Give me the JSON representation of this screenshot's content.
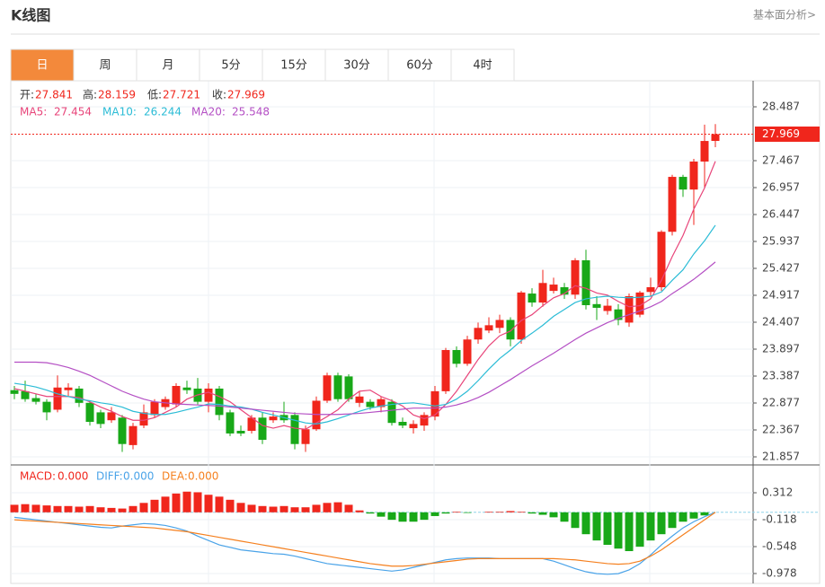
{
  "header": {
    "title": "K线图",
    "link": "基本面分析>"
  },
  "tabs": [
    "日",
    "周",
    "月",
    "5分",
    "15分",
    "30分",
    "60分",
    "4时"
  ],
  "active_tab": 0,
  "chart_data": [
    {
      "type": "candlestick",
      "ohlc_labels": [
        "开:",
        "高:",
        "低:",
        "收:"
      ],
      "open": [
        23.12,
        23.1,
        22.97,
        22.9,
        22.75,
        23.12,
        23.15,
        22.88,
        22.7,
        22.55,
        22.6,
        22.08,
        22.45,
        22.65,
        22.8,
        22.85,
        23.17,
        23.15,
        22.9,
        23.15,
        22.7,
        22.35,
        22.35,
        22.6,
        22.55,
        22.65,
        22.65,
        22.1,
        22.38,
        22.92,
        23.4,
        23.38,
        22.88,
        22.9,
        22.8,
        22.9,
        22.52,
        22.4,
        22.45,
        22.62,
        23.1,
        23.88,
        23.62,
        24.08,
        24.25,
        24.3,
        24.45,
        24.08,
        24.95,
        24.78,
        25.0,
        25.07,
        24.93,
        25.58,
        24.75,
        24.62,
        24.65,
        24.4,
        24.55,
        24.98,
        25.07,
        26.12,
        27.16,
        26.92,
        27.45,
        27.841
      ],
      "high": [
        23.2,
        23.3,
        23.05,
        22.95,
        23.4,
        23.25,
        23.2,
        22.9,
        22.75,
        22.8,
        22.65,
        22.5,
        22.85,
        22.95,
        23.0,
        23.25,
        23.3,
        23.35,
        23.25,
        23.2,
        22.75,
        22.45,
        22.65,
        22.7,
        22.7,
        22.9,
        22.7,
        22.45,
        23.0,
        23.45,
        23.45,
        23.42,
        23.1,
        22.95,
        23.0,
        22.95,
        22.6,
        22.55,
        22.7,
        23.2,
        23.92,
        23.95,
        24.15,
        24.4,
        24.5,
        24.55,
        24.5,
        25.0,
        25.05,
        25.4,
        25.25,
        25.15,
        25.62,
        25.78,
        24.9,
        24.85,
        24.75,
        24.95,
        25.0,
        25.25,
        26.15,
        27.2,
        27.2,
        27.5,
        28.15,
        28.159
      ],
      "low": [
        22.95,
        22.9,
        22.85,
        22.55,
        22.7,
        23.0,
        22.8,
        22.45,
        22.4,
        22.5,
        21.95,
        22.0,
        22.4,
        22.6,
        22.75,
        22.8,
        23.05,
        22.85,
        22.7,
        22.55,
        22.25,
        22.25,
        22.3,
        22.1,
        22.5,
        22.5,
        22.0,
        21.95,
        22.35,
        22.88,
        22.9,
        22.9,
        22.8,
        22.75,
        22.7,
        22.45,
        22.4,
        22.3,
        22.35,
        22.55,
        23.05,
        23.55,
        23.58,
        24.0,
        24.2,
        24.2,
        23.95,
        24.0,
        24.7,
        24.7,
        24.95,
        24.85,
        24.85,
        24.65,
        24.45,
        24.55,
        24.35,
        24.32,
        24.5,
        24.9,
        25.0,
        26.05,
        26.78,
        26.25,
        26.95,
        27.721
      ],
      "close": [
        23.05,
        22.95,
        22.9,
        22.7,
        23.17,
        23.17,
        22.88,
        22.52,
        22.48,
        22.7,
        22.1,
        22.44,
        22.7,
        22.9,
        22.95,
        23.2,
        23.12,
        22.9,
        23.15,
        22.65,
        22.3,
        22.3,
        22.6,
        22.18,
        22.62,
        22.55,
        22.1,
        22.38,
        22.92,
        23.4,
        22.95,
        22.95,
        23.0,
        22.8,
        22.95,
        22.5,
        22.45,
        22.48,
        22.65,
        23.1,
        23.88,
        23.62,
        24.08,
        24.3,
        24.35,
        24.45,
        24.08,
        24.97,
        24.78,
        25.15,
        25.12,
        24.93,
        25.58,
        24.73,
        24.68,
        24.72,
        24.45,
        24.9,
        24.97,
        25.07,
        26.12,
        27.16,
        26.92,
        27.45,
        27.84,
        27.969
      ],
      "up_color": "#f0261c",
      "down_color": "#18a818",
      "series": [
        {
          "name": "MA5:",
          "color": "#e8457a",
          "values": [
            23.15,
            23.1,
            23.05,
            23.0,
            23.0,
            23.0,
            22.98,
            22.9,
            22.8,
            22.72,
            22.62,
            22.55,
            22.55,
            22.6,
            22.7,
            22.8,
            22.95,
            23.03,
            23.08,
            23.0,
            22.9,
            22.75,
            22.6,
            22.45,
            22.4,
            22.45,
            22.4,
            22.38,
            22.5,
            22.62,
            22.75,
            22.95,
            23.1,
            23.12,
            23.0,
            22.92,
            22.82,
            22.65,
            22.58,
            22.65,
            22.85,
            23.1,
            23.4,
            23.7,
            23.96,
            24.15,
            24.24,
            24.44,
            24.55,
            24.72,
            24.87,
            24.95,
            25.1,
            25.05,
            24.96,
            24.92,
            24.8,
            24.7,
            24.72,
            24.85,
            25.2,
            25.65,
            26.05,
            26.55,
            26.95,
            27.454
          ]
        },
        {
          "name": "MA10:",
          "color": "#2bbcd6",
          "values": [
            23.25,
            23.22,
            23.18,
            23.12,
            23.05,
            23.0,
            22.95,
            22.92,
            22.88,
            22.85,
            22.8,
            22.72,
            22.68,
            22.66,
            22.66,
            22.7,
            22.75,
            22.8,
            22.86,
            22.85,
            22.82,
            22.8,
            22.76,
            22.7,
            22.65,
            22.6,
            22.55,
            22.5,
            22.48,
            22.52,
            22.58,
            22.65,
            22.72,
            22.78,
            22.82,
            22.85,
            22.87,
            22.88,
            22.85,
            22.82,
            22.85,
            22.95,
            23.1,
            23.3,
            23.52,
            23.72,
            23.88,
            24.06,
            24.2,
            24.35,
            24.52,
            24.65,
            24.78,
            24.85,
            24.88,
            24.9,
            24.88,
            24.87,
            24.88,
            24.9,
            24.98,
            25.2,
            25.4,
            25.7,
            25.95,
            26.244
          ]
        },
        {
          "name": "MA20:",
          "color": "#b44fc4",
          "values": [
            23.65,
            23.65,
            23.65,
            23.64,
            23.6,
            23.55,
            23.48,
            23.4,
            23.3,
            23.2,
            23.1,
            23.02,
            22.95,
            22.9,
            22.88,
            22.86,
            22.85,
            22.84,
            22.83,
            22.82,
            22.8,
            22.78,
            22.76,
            22.74,
            22.72,
            22.7,
            22.68,
            22.67,
            22.66,
            22.66,
            22.66,
            22.67,
            22.68,
            22.7,
            22.72,
            22.74,
            22.76,
            22.78,
            22.78,
            22.78,
            22.8,
            22.84,
            22.9,
            22.98,
            23.08,
            23.2,
            23.32,
            23.45,
            23.58,
            23.7,
            23.82,
            23.95,
            24.08,
            24.2,
            24.3,
            24.4,
            24.48,
            24.55,
            24.62,
            24.7,
            24.8,
            24.95,
            25.08,
            25.22,
            25.38,
            25.548
          ]
        }
      ],
      "ylim": [
        21.704,
        28.98
      ],
      "yticks": [
        28.487,
        27.467,
        26.957,
        26.447,
        25.937,
        25.427,
        24.917,
        24.407,
        23.897,
        23.387,
        22.877,
        22.367,
        21.857
      ],
      "grid": true
    },
    {
      "type": "macd",
      "negative_color": "#18a818",
      "series": [
        {
          "name": "MACD:",
          "color": "#f0261c",
          "legend_value": "0.000",
          "values": [
            0.12,
            0.13,
            0.12,
            0.11,
            0.1,
            0.1,
            0.09,
            0.1,
            0.08,
            0.07,
            0.06,
            0.1,
            0.15,
            0.2,
            0.25,
            0.3,
            0.33,
            0.32,
            0.28,
            0.25,
            0.2,
            0.15,
            0.12,
            0.1,
            0.09,
            0.1,
            0.08,
            0.08,
            0.12,
            0.15,
            0.16,
            0.12,
            0.03,
            -0.02,
            -0.07,
            -0.12,
            -0.15,
            -0.15,
            -0.12,
            -0.06,
            -0.02,
            0.01,
            -0.01,
            0.0,
            0.01,
            0.01,
            0.02,
            0.01,
            -0.02,
            -0.04,
            -0.08,
            -0.15,
            -0.25,
            -0.35,
            -0.45,
            -0.52,
            -0.58,
            -0.62,
            -0.55,
            -0.45,
            -0.35,
            -0.25,
            -0.15,
            -0.1,
            -0.05,
            0.0
          ]
        },
        {
          "name": "DIFF:",
          "color": "#4aa3e8",
          "legend_value": "0.000",
          "values": [
            -0.08,
            -0.1,
            -0.12,
            -0.14,
            -0.16,
            -0.18,
            -0.2,
            -0.22,
            -0.24,
            -0.25,
            -0.22,
            -0.2,
            -0.18,
            -0.19,
            -0.21,
            -0.25,
            -0.3,
            -0.38,
            -0.45,
            -0.52,
            -0.56,
            -0.6,
            -0.62,
            -0.64,
            -0.66,
            -0.67,
            -0.7,
            -0.74,
            -0.78,
            -0.82,
            -0.84,
            -0.86,
            -0.88,
            -0.9,
            -0.92,
            -0.94,
            -0.92,
            -0.88,
            -0.84,
            -0.8,
            -0.76,
            -0.74,
            -0.73,
            -0.73,
            -0.73,
            -0.74,
            -0.74,
            -0.74,
            -0.74,
            -0.74,
            -0.78,
            -0.84,
            -0.9,
            -0.95,
            -0.98,
            -0.99,
            -0.98,
            -0.92,
            -0.82,
            -0.68,
            -0.52,
            -0.38,
            -0.25,
            -0.15,
            -0.07,
            0.0
          ]
        },
        {
          "name": "DEA:",
          "color": "#f5801f",
          "legend_value": "0.000",
          "values": [
            -0.12,
            -0.13,
            -0.14,
            -0.15,
            -0.16,
            -0.17,
            -0.18,
            -0.19,
            -0.2,
            -0.21,
            -0.22,
            -0.23,
            -0.24,
            -0.25,
            -0.27,
            -0.29,
            -0.31,
            -0.34,
            -0.37,
            -0.4,
            -0.43,
            -0.46,
            -0.49,
            -0.52,
            -0.55,
            -0.58,
            -0.61,
            -0.64,
            -0.67,
            -0.7,
            -0.73,
            -0.76,
            -0.79,
            -0.82,
            -0.84,
            -0.86,
            -0.86,
            -0.85,
            -0.83,
            -0.81,
            -0.79,
            -0.77,
            -0.75,
            -0.74,
            -0.74,
            -0.74,
            -0.74,
            -0.74,
            -0.74,
            -0.74,
            -0.74,
            -0.75,
            -0.76,
            -0.78,
            -0.8,
            -0.82,
            -0.83,
            -0.82,
            -0.78,
            -0.7,
            -0.6,
            -0.48,
            -0.36,
            -0.24,
            -0.12,
            0.0
          ]
        }
      ],
      "ylim": [
        -1.136,
        0.728
      ],
      "yticks": [
        0.312,
        -0.118,
        -0.548,
        -0.978
      ],
      "grid": true
    }
  ]
}
